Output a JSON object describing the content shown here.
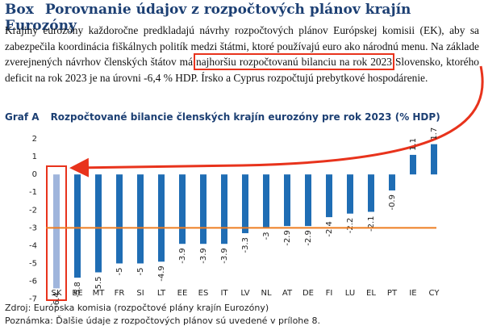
{
  "header": {
    "label": "Box",
    "title": "Porovnanie údajov z rozpočtových plánov krajín Eurozóny"
  },
  "paragraph": {
    "before": "Krajiny eurozóny každoročne predkladajú návrhy rozpočtových plánov Európskej komisii (EK), aby sa zabezpečila koordinácia fiškálnych politík medzi štátmi, ktoré používajú euro ako národnú menu. Na základe zverejnených návrhov členských štátov má",
    "highlight": "najhoršiu rozpočtovanú bilanciu na rok 2023",
    "after": "Slovensko, ktorého deficit na rok 2023 je na úrovni -6,4 % HDP. Írsko a Cyprus rozpočtujú prebytkové hospodárenie."
  },
  "chart_data": {
    "type": "bar",
    "label": "Graf A",
    "title": "Rozpočtované bilancie členských krajín eurozóny pre rok 2023 (% HDP)",
    "categories": [
      "SK",
      "BE",
      "MT",
      "FR",
      "SI",
      "LT",
      "EE",
      "ES",
      "IT",
      "LV",
      "NL",
      "AT",
      "DE",
      "FI",
      "LU",
      "EL",
      "PT",
      "IE",
      "CY"
    ],
    "values": [
      -6.4,
      -5.8,
      -5.5,
      -5,
      -5,
      -4.9,
      -3.9,
      -3.9,
      -3.9,
      -3.3,
      -3,
      -2.9,
      -2.9,
      -2.4,
      -2.2,
      -2.1,
      -0.9,
      1.1,
      1.7
    ],
    "colors": [
      "#9fb5dc",
      "#1f6db4",
      "#1f6db4",
      "#1f6db4",
      "#1f6db4",
      "#1f6db4",
      "#1f6db4",
      "#1f6db4",
      "#1f6db4",
      "#1f6db4",
      "#1f6db4",
      "#1f6db4",
      "#1f6db4",
      "#1f6db4",
      "#1f6db4",
      "#1f6db4",
      "#1f6db4",
      "#1f6db4",
      "#1f6db4"
    ],
    "ylim": [
      -7.2,
      3
    ],
    "yticks": [
      2,
      1,
      0,
      -1,
      -2,
      -3,
      -4,
      -5,
      -6,
      -7
    ],
    "grid": false,
    "reference_line": -3,
    "reference_color": "#ee7d21"
  },
  "footer": {
    "source": "Zdroj: Európska komisia (rozpočtové plány krajín Eurozóny)",
    "note": "Poznámka: Ďalšie údaje z rozpočtových plánov sú uvedené v prílohe 8."
  }
}
